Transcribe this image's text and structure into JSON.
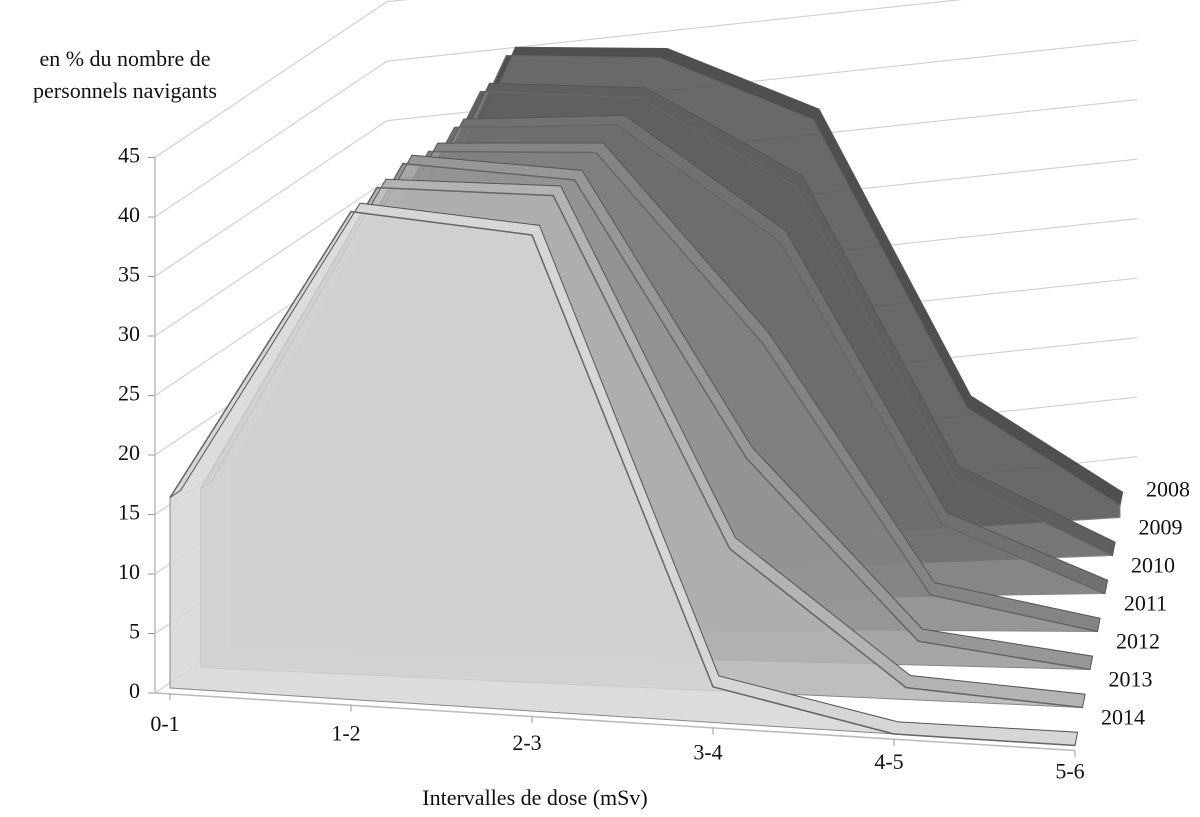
{
  "chart_data": {
    "type": "area3d",
    "ylabel_lines": [
      "en % du nombre de",
      "personnels navigants"
    ],
    "xlabel": "Intervalles de dose (mSv)",
    "categories": [
      "0-1",
      "1-2",
      "2-3",
      "3-4",
      "4-5",
      "5-6"
    ],
    "series": [
      {
        "name": "2008",
        "color": "#4f4f4f",
        "values": [
          15,
          42,
          41,
          35,
          10,
          1
        ]
      },
      {
        "name": "2009",
        "color": "#5f5f5f",
        "values": [
          15,
          41,
          40,
          32,
          7,
          0
        ]
      },
      {
        "name": "2010",
        "color": "#717171",
        "values": [
          15,
          40,
          40,
          30,
          6,
          0
        ]
      },
      {
        "name": "2011",
        "color": "#848484",
        "values": [
          15,
          40,
          40,
          24,
          3,
          0
        ]
      },
      {
        "name": "2012",
        "color": "#979797",
        "values": [
          15,
          41,
          40,
          17,
          2,
          0
        ]
      },
      {
        "name": "2013",
        "color": "#b3b3b3",
        "values": [
          15,
          41,
          41,
          12,
          1,
          0
        ]
      },
      {
        "name": "2014",
        "color": "#d6d6d6",
        "values": [
          16,
          41,
          40,
          3,
          0,
          0
        ]
      }
    ],
    "ylim": [
      0,
      45
    ],
    "yticks": [
      0,
      5,
      10,
      15,
      20,
      25,
      30,
      35,
      40,
      45
    ],
    "grid": true
  }
}
